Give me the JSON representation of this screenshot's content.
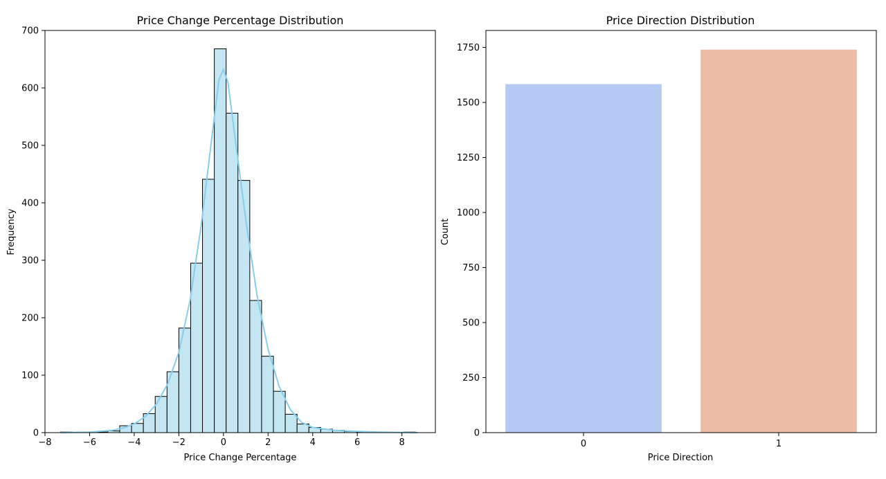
{
  "chart_data": [
    {
      "type": "bar",
      "subtype": "histogram-with-kde",
      "title": "Price Change Percentage Distribution",
      "xlabel": "Price Change Percentage",
      "ylabel": "Frequency",
      "xlim": [
        -8,
        9.5
      ],
      "ylim": [
        0,
        700
      ],
      "xticks": [
        -8,
        -6,
        -4,
        -2,
        0,
        2,
        4,
        6,
        8
      ],
      "yticks": [
        0,
        100,
        200,
        300,
        400,
        500,
        600,
        700
      ],
      "bins": {
        "edges": [
          -7.3,
          -6.77,
          -6.24,
          -5.71,
          -5.18,
          -4.65,
          -4.12,
          -3.59,
          -3.06,
          -2.53,
          -2.0,
          -1.47,
          -0.94,
          -0.41,
          0.12,
          0.65,
          1.18,
          1.71,
          2.24,
          2.77,
          3.3,
          3.83,
          4.36,
          4.89,
          5.42,
          5.95,
          6.48,
          7.01,
          7.54,
          8.07,
          8.6
        ],
        "counts": [
          1,
          0,
          1,
          1,
          3,
          12,
          16,
          33,
          63,
          106,
          182,
          295,
          441,
          668,
          556,
          439,
          230,
          133,
          72,
          32,
          15,
          9,
          6,
          4,
          2,
          1,
          1,
          0,
          0,
          1
        ]
      },
      "kde": {
        "x": [
          -7.3,
          -6,
          -5,
          -4.5,
          -4,
          -3.5,
          -3,
          -2.5,
          -2,
          -1.5,
          -1,
          -0.5,
          -0.2,
          0,
          0.2,
          0.5,
          1,
          1.5,
          2,
          2.5,
          3,
          3.5,
          4,
          5,
          6,
          7,
          8.7
        ],
        "y": [
          0,
          1,
          4,
          8,
          15,
          28,
          50,
          85,
          140,
          230,
          360,
          520,
          615,
          632,
          610,
          520,
          370,
          240,
          145,
          80,
          40,
          18,
          9,
          4,
          2,
          1,
          0
        ]
      },
      "bar_fill": "#c3e6f2",
      "bar_edge": "#000000",
      "kde_color": "#87ceeb"
    },
    {
      "type": "bar",
      "title": "Price Direction Distribution",
      "xlabel": "Price Direction",
      "ylabel": "Count",
      "categories": [
        "0",
        "1"
      ],
      "values": [
        1583,
        1740
      ],
      "colors": [
        "#b5caf3",
        "#ecbca6"
      ],
      "ylim": [
        0,
        1827
      ],
      "yticks": [
        0,
        250,
        500,
        750,
        1000,
        1250,
        1500,
        1750
      ]
    }
  ]
}
